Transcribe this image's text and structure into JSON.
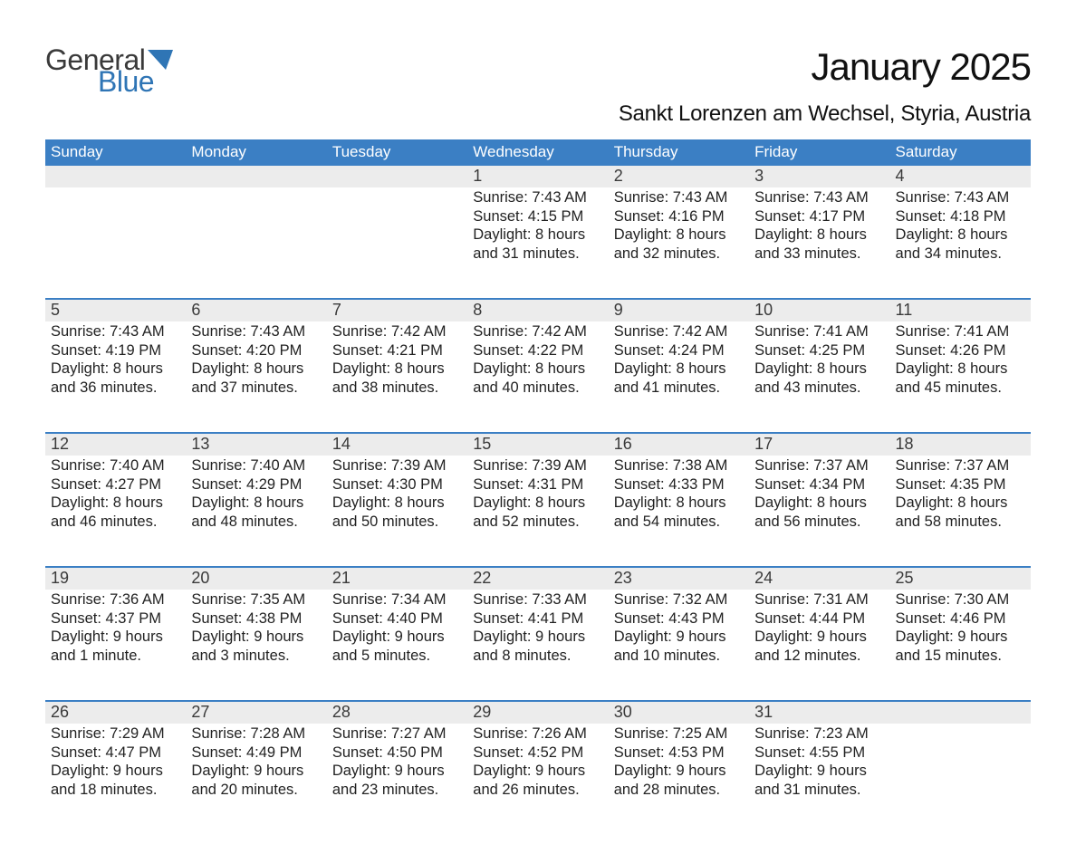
{
  "brand": {
    "word1": "General",
    "word2": "Blue",
    "word1_color": "#3a3a3a",
    "word2_color": "#2f75b5"
  },
  "title": "January 2025",
  "subtitle": "Sankt Lorenzen am Wechsel, Styria, Austria",
  "colors": {
    "header_bg": "#3b7fc4",
    "header_text": "#ffffff",
    "daynum_bg": "#ececec",
    "daynum_text": "#3a3a3a",
    "body_text": "#222222",
    "separator": "#3b7fc4",
    "page_bg": "#ffffff"
  },
  "fonts": {
    "title_size": 42,
    "subtitle_size": 24,
    "dow_size": 17,
    "daynum_size": 18,
    "body_size": 16.5
  },
  "labels": {
    "sunrise": "Sunrise:",
    "sunset": "Sunset:",
    "daylight": "Daylight:"
  },
  "days_of_week": [
    "Sunday",
    "Monday",
    "Tuesday",
    "Wednesday",
    "Thursday",
    "Friday",
    "Saturday"
  ],
  "weeks": [
    [
      null,
      null,
      null,
      {
        "d": "1",
        "sunrise": "7:43 AM",
        "sunset": "4:15 PM",
        "dl1": "8 hours",
        "dl2": "and 31 minutes."
      },
      {
        "d": "2",
        "sunrise": "7:43 AM",
        "sunset": "4:16 PM",
        "dl1": "8 hours",
        "dl2": "and 32 minutes."
      },
      {
        "d": "3",
        "sunrise": "7:43 AM",
        "sunset": "4:17 PM",
        "dl1": "8 hours",
        "dl2": "and 33 minutes."
      },
      {
        "d": "4",
        "sunrise": "7:43 AM",
        "sunset": "4:18 PM",
        "dl1": "8 hours",
        "dl2": "and 34 minutes."
      }
    ],
    [
      {
        "d": "5",
        "sunrise": "7:43 AM",
        "sunset": "4:19 PM",
        "dl1": "8 hours",
        "dl2": "and 36 minutes."
      },
      {
        "d": "6",
        "sunrise": "7:43 AM",
        "sunset": "4:20 PM",
        "dl1": "8 hours",
        "dl2": "and 37 minutes."
      },
      {
        "d": "7",
        "sunrise": "7:42 AM",
        "sunset": "4:21 PM",
        "dl1": "8 hours",
        "dl2": "and 38 minutes."
      },
      {
        "d": "8",
        "sunrise": "7:42 AM",
        "sunset": "4:22 PM",
        "dl1": "8 hours",
        "dl2": "and 40 minutes."
      },
      {
        "d": "9",
        "sunrise": "7:42 AM",
        "sunset": "4:24 PM",
        "dl1": "8 hours",
        "dl2": "and 41 minutes."
      },
      {
        "d": "10",
        "sunrise": "7:41 AM",
        "sunset": "4:25 PM",
        "dl1": "8 hours",
        "dl2": "and 43 minutes."
      },
      {
        "d": "11",
        "sunrise": "7:41 AM",
        "sunset": "4:26 PM",
        "dl1": "8 hours",
        "dl2": "and 45 minutes."
      }
    ],
    [
      {
        "d": "12",
        "sunrise": "7:40 AM",
        "sunset": "4:27 PM",
        "dl1": "8 hours",
        "dl2": "and 46 minutes."
      },
      {
        "d": "13",
        "sunrise": "7:40 AM",
        "sunset": "4:29 PM",
        "dl1": "8 hours",
        "dl2": "and 48 minutes."
      },
      {
        "d": "14",
        "sunrise": "7:39 AM",
        "sunset": "4:30 PM",
        "dl1": "8 hours",
        "dl2": "and 50 minutes."
      },
      {
        "d": "15",
        "sunrise": "7:39 AM",
        "sunset": "4:31 PM",
        "dl1": "8 hours",
        "dl2": "and 52 minutes."
      },
      {
        "d": "16",
        "sunrise": "7:38 AM",
        "sunset": "4:33 PM",
        "dl1": "8 hours",
        "dl2": "and 54 minutes."
      },
      {
        "d": "17",
        "sunrise": "7:37 AM",
        "sunset": "4:34 PM",
        "dl1": "8 hours",
        "dl2": "and 56 minutes."
      },
      {
        "d": "18",
        "sunrise": "7:37 AM",
        "sunset": "4:35 PM",
        "dl1": "8 hours",
        "dl2": "and 58 minutes."
      }
    ],
    [
      {
        "d": "19",
        "sunrise": "7:36 AM",
        "sunset": "4:37 PM",
        "dl1": "9 hours",
        "dl2": "and 1 minute."
      },
      {
        "d": "20",
        "sunrise": "7:35 AM",
        "sunset": "4:38 PM",
        "dl1": "9 hours",
        "dl2": "and 3 minutes."
      },
      {
        "d": "21",
        "sunrise": "7:34 AM",
        "sunset": "4:40 PM",
        "dl1": "9 hours",
        "dl2": "and 5 minutes."
      },
      {
        "d": "22",
        "sunrise": "7:33 AM",
        "sunset": "4:41 PM",
        "dl1": "9 hours",
        "dl2": "and 8 minutes."
      },
      {
        "d": "23",
        "sunrise": "7:32 AM",
        "sunset": "4:43 PM",
        "dl1": "9 hours",
        "dl2": "and 10 minutes."
      },
      {
        "d": "24",
        "sunrise": "7:31 AM",
        "sunset": "4:44 PM",
        "dl1": "9 hours",
        "dl2": "and 12 minutes."
      },
      {
        "d": "25",
        "sunrise": "7:30 AM",
        "sunset": "4:46 PM",
        "dl1": "9 hours",
        "dl2": "and 15 minutes."
      }
    ],
    [
      {
        "d": "26",
        "sunrise": "7:29 AM",
        "sunset": "4:47 PM",
        "dl1": "9 hours",
        "dl2": "and 18 minutes."
      },
      {
        "d": "27",
        "sunrise": "7:28 AM",
        "sunset": "4:49 PM",
        "dl1": "9 hours",
        "dl2": "and 20 minutes."
      },
      {
        "d": "28",
        "sunrise": "7:27 AM",
        "sunset": "4:50 PM",
        "dl1": "9 hours",
        "dl2": "and 23 minutes."
      },
      {
        "d": "29",
        "sunrise": "7:26 AM",
        "sunset": "4:52 PM",
        "dl1": "9 hours",
        "dl2": "and 26 minutes."
      },
      {
        "d": "30",
        "sunrise": "7:25 AM",
        "sunset": "4:53 PM",
        "dl1": "9 hours",
        "dl2": "and 28 minutes."
      },
      {
        "d": "31",
        "sunrise": "7:23 AM",
        "sunset": "4:55 PM",
        "dl1": "9 hours",
        "dl2": "and 31 minutes."
      },
      null
    ]
  ]
}
